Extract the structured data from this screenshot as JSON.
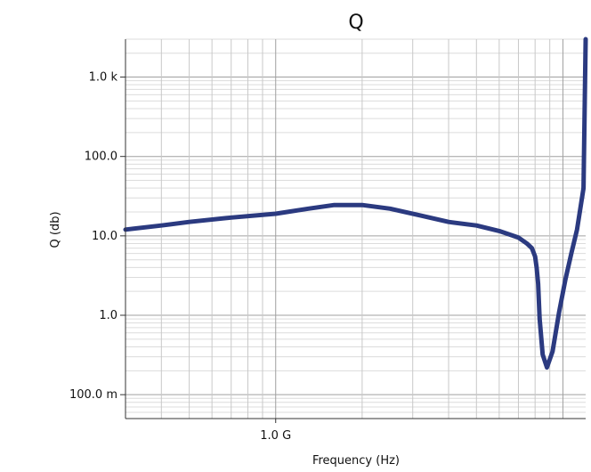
{
  "chart_data": {
    "type": "line",
    "title": "Q",
    "xlabel": "Frequency (Hz)",
    "ylabel": "Q (db)",
    "x_scale": "log",
    "y_scale": "log",
    "x_unit": "Hz",
    "xlim": [
      300000000,
      12000000000
    ],
    "ylim": [
      0.05,
      3000
    ],
    "grid": true,
    "x_ticks": [
      {
        "value": 1000000000,
        "label": "1.0 G"
      }
    ],
    "y_ticks": [
      {
        "value": 0.1,
        "label": "100.0 m"
      },
      {
        "value": 1,
        "label": "1.0"
      },
      {
        "value": 10,
        "label": "10.0"
      },
      {
        "value": 100,
        "label": "100.0"
      },
      {
        "value": 1000,
        "label": "1.0 k"
      }
    ],
    "series_color": "#2b3a80",
    "series": [
      {
        "x": [
          300000000,
          400000000,
          500000000,
          700000000,
          1000000000,
          1300000000,
          1600000000,
          2000000000,
          2500000000,
          3200000000,
          4000000000,
          5000000000,
          6000000000,
          7000000000,
          7500000000,
          7800000000,
          8000000000,
          8100000000,
          8200000000,
          8300000000,
          8500000000,
          8800000000,
          9200000000,
          9700000000,
          10200000000,
          10700000000,
          11200000000,
          11800000000,
          12000000000
        ],
        "y": [
          12,
          13.5,
          15,
          17,
          19,
          22,
          24.5,
          24.5,
          22,
          18,
          15,
          13.5,
          11.5,
          9.5,
          8,
          7,
          5.5,
          4,
          2.5,
          0.9,
          0.32,
          0.22,
          0.35,
          1.1,
          2.8,
          6,
          12,
          40,
          3000
        ]
      }
    ]
  }
}
